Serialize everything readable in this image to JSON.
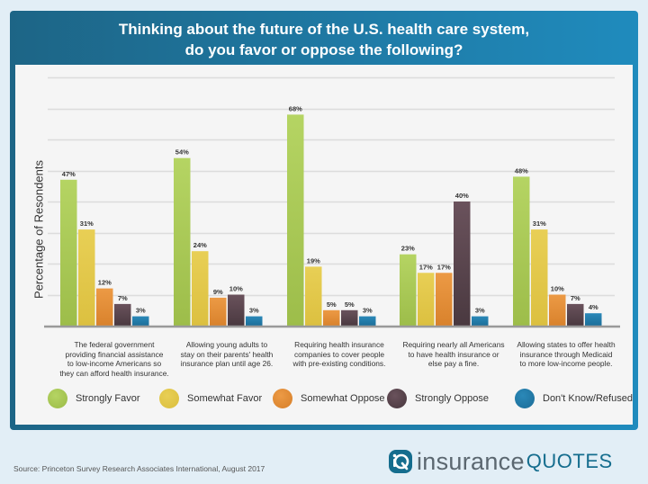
{
  "chart_data": {
    "type": "bar",
    "title": "Thinking about the future of the U.S. health care system, do you favor or oppose the following?",
    "title_lines": [
      "Thinking about the future of the U.S. health care system,",
      "do you favor or oppose the following?"
    ],
    "xlabel": "",
    "ylabel": "Percentage of Resondents",
    "ylim": [
      0,
      80
    ],
    "grid": true,
    "grid_step": 10,
    "legend_position": "bottom",
    "categories": [
      "The federal government providing financial assistance to low-income Americans so they can afford health insurance.",
      "Allowing young adults to stay on their parents' health insurance plan until age 26.",
      "Requiring health insurance companies to cover people with pre-existing conditions.",
      "Requiring nearly all Americans to have health insurance or else pay a fine.",
      "Allowing states to offer health insurance through Medicaid to more low-income people."
    ],
    "category_label_lines": [
      [
        "The federal government",
        "providing financial assistance",
        "to low-income Americans so",
        "they can afford health insurance."
      ],
      [
        "Allowing young adults to",
        "stay on their parents' health",
        "insurance plan until age 26."
      ],
      [
        "Requiring health insurance",
        "companies to cover people",
        "with pre-existing conditions."
      ],
      [
        "Requiring nearly all Americans",
        "to have health insurance or",
        "else pay a fine."
      ],
      [
        "Allowing states to offer health",
        "insurance through Medicaid",
        "to more low-income people."
      ]
    ],
    "series": [
      {
        "name": "Strongly Favor",
        "color": "#9dbd4a",
        "color_light": "#b5d463",
        "values": [
          47,
          54,
          68,
          23,
          48
        ]
      },
      {
        "name": "Somewhat Favor",
        "color": "#dcc040",
        "color_light": "#e8cf55",
        "values": [
          31,
          24,
          19,
          17,
          31
        ]
      },
      {
        "name": "Somewhat Oppose",
        "color": "#d9822c",
        "color_light": "#ec9a45",
        "values": [
          12,
          9,
          5,
          17,
          10
        ]
      },
      {
        "name": "Strongly Oppose",
        "color": "#4a3940",
        "color_light": "#6a525c",
        "values": [
          7,
          10,
          5,
          40,
          7
        ]
      },
      {
        "name": "Don't Know/Refused",
        "color": "#1d6f9a",
        "color_light": "#2a88b8",
        "values": [
          3,
          3,
          3,
          3,
          4
        ]
      }
    ],
    "value_suffix": "%"
  },
  "footer": {
    "source": "Source: Princeton Survey Research Associates International, August 2017",
    "logo_word1": "insurance",
    "logo_word2": "QUOTES"
  },
  "colors": {
    "header_start": "#1d6586",
    "header_end": "#1f8bbd",
    "panel": "#f5f5f5",
    "page": "#e2eef6",
    "gridline": "#dcdcdc",
    "baseline": "#9a9a9a"
  }
}
